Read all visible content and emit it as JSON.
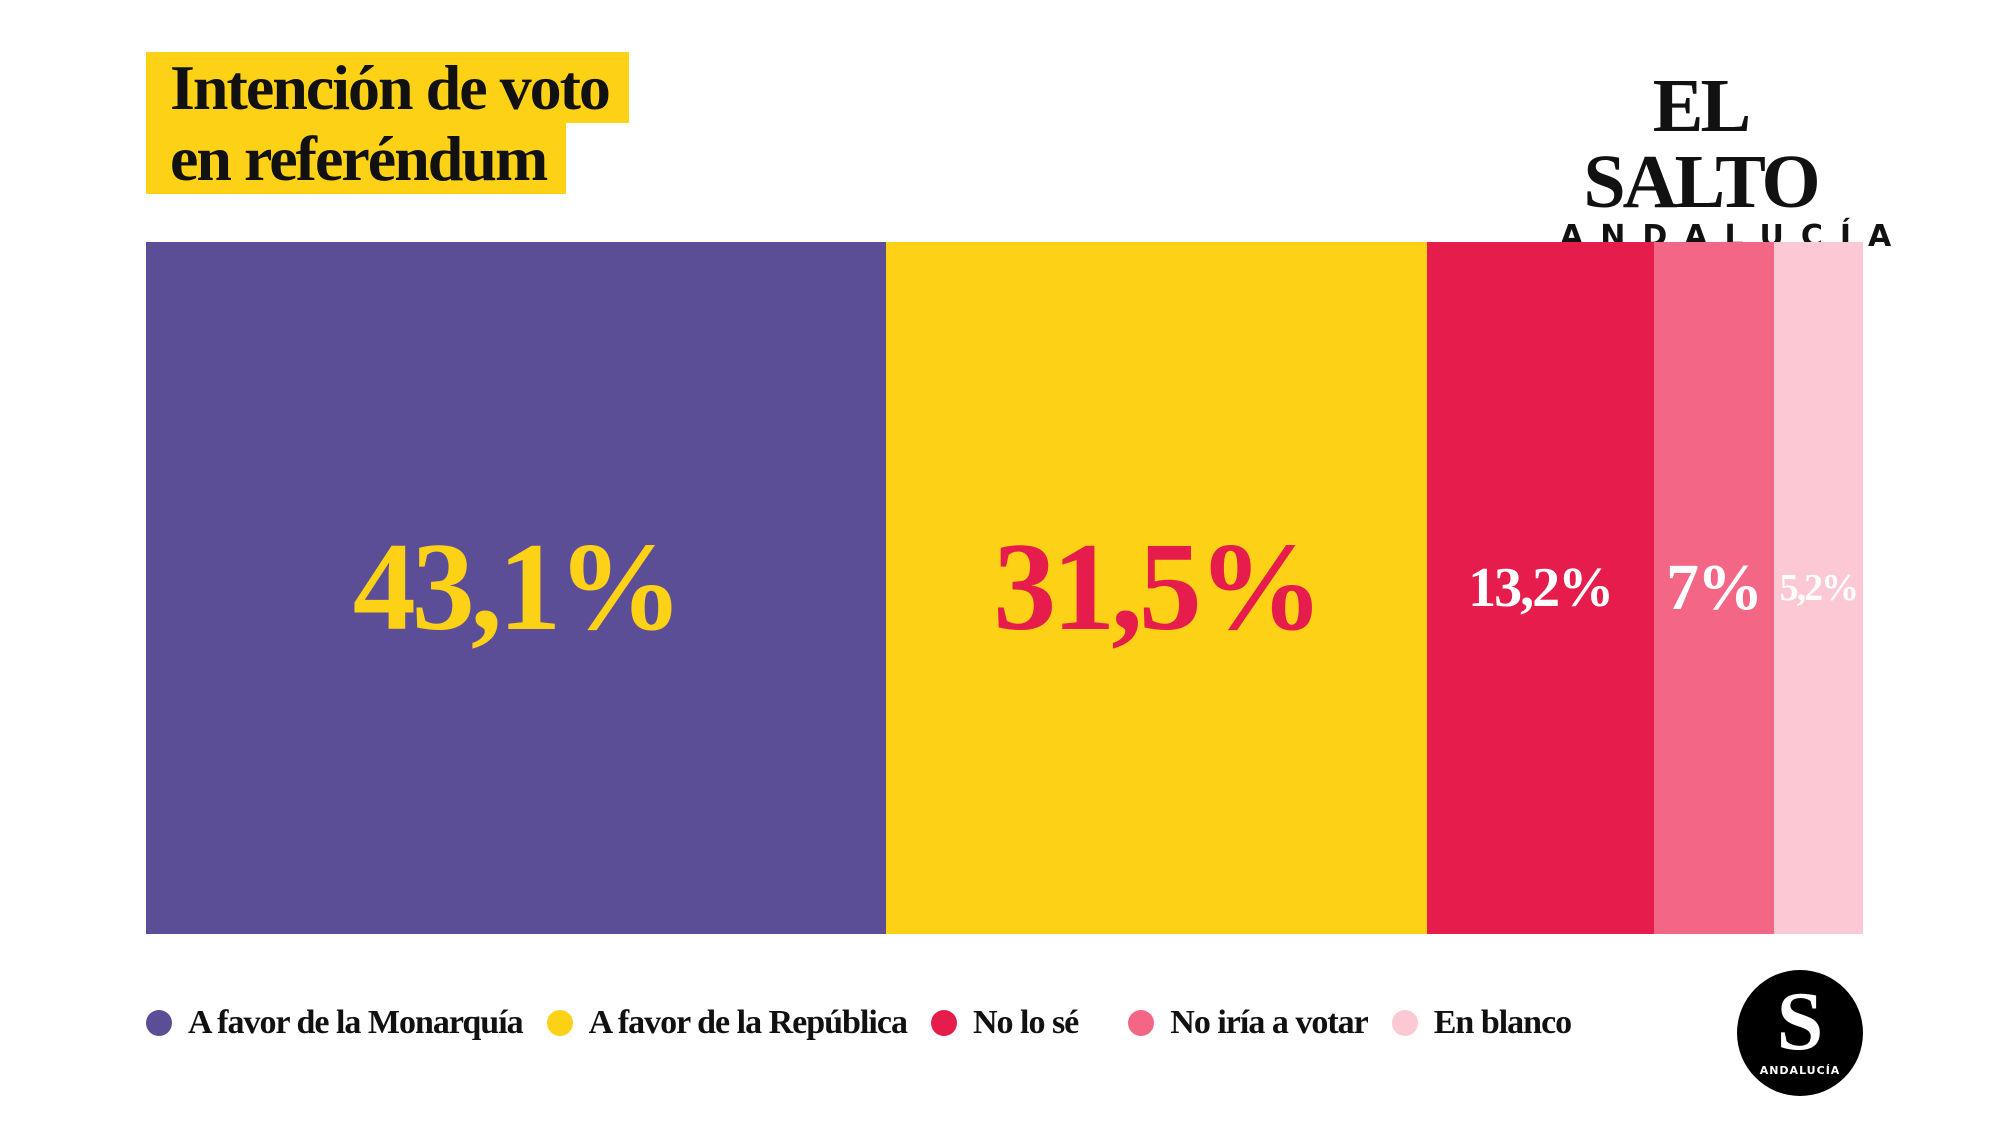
{
  "title": [
    "Intención de voto",
    "en referéndum"
  ],
  "brand": {
    "name": "EL SALTO",
    "region": "ANDALUCÍA",
    "badge_letter": "S",
    "badge_region": "ANDALUCÍA"
  },
  "chart_data": {
    "type": "bar",
    "orientation": "horizontal-stacked-100",
    "title": "Intención de voto en referéndum",
    "categories": [
      "A favor de la Monarquía",
      "A favor de la República",
      "No lo sé",
      "No iría a votar",
      "En blanco"
    ],
    "values": [
      43.1,
      31.5,
      13.2,
      7,
      5.2
    ],
    "labels": [
      "43,1%",
      "31,5%",
      "13,2%",
      "7%",
      "5,2%"
    ],
    "colors": [
      "#5C4D97",
      "#FDD116",
      "#E51C4C",
      "#F46685",
      "#FBC8D4"
    ],
    "label_colors": [
      "#FDD116",
      "#E51C4C",
      "#FFFFFF",
      "#FFFFFF",
      "#FFFFFF"
    ],
    "legend": "bottom-left",
    "grid": false
  }
}
